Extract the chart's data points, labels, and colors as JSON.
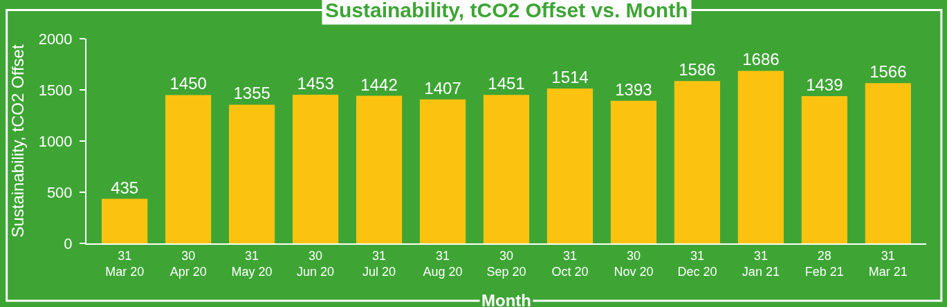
{
  "chart_data": {
    "type": "bar",
    "title": "Sustainability, tCO2 Offset vs. Month",
    "xlabel": "Month",
    "ylabel": "Sustainability, tCO2 Offset",
    "categories": [
      "31\nMar 20",
      "30\nApr 20",
      "31\nMay 20",
      "30\nJun 20",
      "31\nJul 20",
      "31\nAug 20",
      "30\nSep 20",
      "31\nOct 20",
      "30\nNov 20",
      "31\nDec 20",
      "31\nJan 21",
      "28\nFeb 21",
      "31\nMar 21"
    ],
    "values": [
      435,
      1450,
      1355,
      1453,
      1442,
      1407,
      1451,
      1514,
      1393,
      1586,
      1686,
      1439,
      1566
    ],
    "color": "#fbc30f",
    "ylim": [
      0,
      2000
    ],
    "yticks": [
      0,
      500,
      1000,
      1500,
      2000
    ],
    "grid": false,
    "data_labels": true
  }
}
